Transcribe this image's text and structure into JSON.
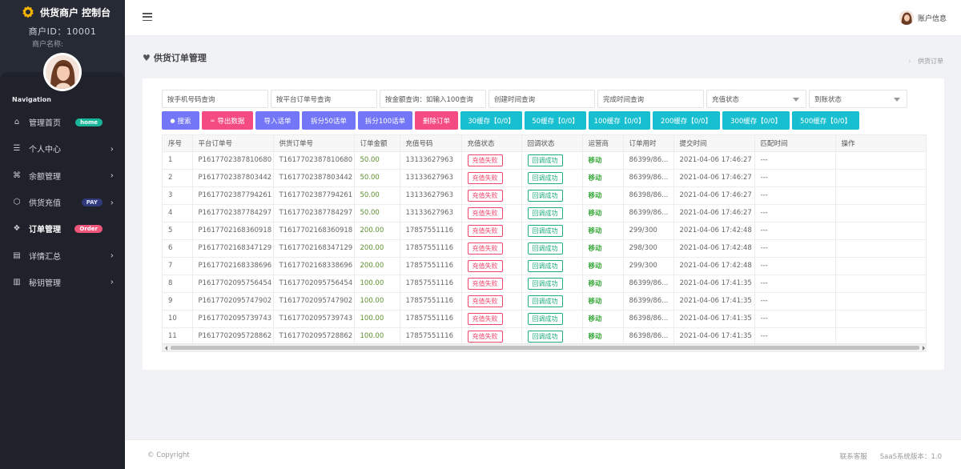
{
  "sidebar": {
    "brand": "供货商户 控制台",
    "merchant_id": "商户ID：10001",
    "merchant_name": "商户名称:",
    "nav_title": "Navigation",
    "items": [
      {
        "label": "管理首页",
        "icon": "home-icon",
        "badge": "home",
        "badge_color": "#18b59a",
        "chevron": false,
        "active": false
      },
      {
        "label": "个人中心",
        "icon": "list-icon",
        "badge": "",
        "chevron": true,
        "active": false
      },
      {
        "label": "余额管理",
        "icon": "command-icon",
        "badge": "",
        "chevron": true,
        "active": false
      },
      {
        "label": "供货充值",
        "icon": "box-icon",
        "badge": "PAY",
        "badge_color": "#303a7a",
        "chevron": true,
        "active": false
      },
      {
        "label": "订单管理",
        "icon": "layers-icon",
        "badge": "Order",
        "badge_color": "#f0557c",
        "chevron": false,
        "active": true
      },
      {
        "label": "详情汇总",
        "icon": "document-icon",
        "badge": "",
        "chevron": true,
        "active": false
      },
      {
        "label": "秘钥管理",
        "icon": "map-icon",
        "badge": "",
        "chevron": true,
        "active": false
      }
    ]
  },
  "header": {
    "user_label": "账户信息"
  },
  "page": {
    "title": "供货订单管理",
    "breadcrumb": "供货订单"
  },
  "filters": [
    {
      "placeholder": "按手机号码查询",
      "type": "input"
    },
    {
      "placeholder": "按平台订单号查询",
      "type": "input"
    },
    {
      "placeholder": "按金额查询：如输入100查询",
      "type": "input"
    },
    {
      "placeholder": "创建时间查询",
      "type": "input"
    },
    {
      "placeholder": "完成时间查询",
      "type": "input"
    },
    {
      "placeholder": "充值状态",
      "type": "select"
    },
    {
      "placeholder": "到账状态",
      "type": "select"
    }
  ],
  "buttons": [
    {
      "label": "搜索",
      "color": "purple",
      "icon": "search-icon"
    },
    {
      "label": "导出数据",
      "color": "pink",
      "icon": "link-icon"
    },
    {
      "label": "导入话单",
      "color": "purple",
      "icon": ""
    },
    {
      "label": "拆分50话单",
      "color": "purple",
      "icon": ""
    },
    {
      "label": "拆分100话单",
      "color": "purple",
      "icon": ""
    },
    {
      "label": "删除订单",
      "color": "pink",
      "icon": ""
    },
    {
      "label": "30缓存【0/0】",
      "color": "cyan",
      "icon": ""
    },
    {
      "label": "50缓存【0/0】",
      "color": "cyan",
      "icon": ""
    },
    {
      "label": "100缓存【0/0】",
      "color": "cyan",
      "icon": ""
    },
    {
      "label": "200缓存【0/0】",
      "color": "cyan",
      "icon": ""
    },
    {
      "label": "300缓存【0/0】",
      "color": "cyan",
      "icon": ""
    },
    {
      "label": "500缓存【0/0】",
      "color": "cyan",
      "icon": ""
    }
  ],
  "table": {
    "columns": [
      "序号",
      "平台订单号",
      "供货订单号",
      "订单金额",
      "充值号码",
      "充值状态",
      "回调状态",
      "运营商",
      "订单用时",
      "提交时间",
      "匹配时间",
      "操作"
    ],
    "rows": [
      [
        "1",
        "P1617702387810680",
        "T1617702387810680",
        "50.00",
        "13133627963",
        "充值失败",
        "回调成功",
        "移动",
        "86399/86...",
        "2021-04-06 17:46:27",
        "---",
        ""
      ],
      [
        "2",
        "P1617702387803442",
        "T1617702387803442",
        "50.00",
        "13133627963",
        "充值失败",
        "回调成功",
        "移动",
        "86399/86...",
        "2021-04-06 17:46:27",
        "---",
        ""
      ],
      [
        "3",
        "P1617702387794261",
        "T1617702387794261",
        "50.00",
        "13133627963",
        "充值失败",
        "回调成功",
        "移动",
        "86398/86...",
        "2021-04-06 17:46:27",
        "---",
        ""
      ],
      [
        "4",
        "P1617702387784297",
        "T1617702387784297",
        "50.00",
        "13133627963",
        "充值失败",
        "回调成功",
        "移动",
        "86399/86...",
        "2021-04-06 17:46:27",
        "---",
        ""
      ],
      [
        "5",
        "P1617702168360918",
        "T1617702168360918",
        "200.00",
        "17857551116",
        "充值失败",
        "回调成功",
        "移动",
        "299/300",
        "2021-04-06 17:42:48",
        "---",
        ""
      ],
      [
        "6",
        "P1617702168347129",
        "T1617702168347129",
        "200.00",
        "17857551116",
        "充值失败",
        "回调成功",
        "移动",
        "298/300",
        "2021-04-06 17:42:48",
        "---",
        ""
      ],
      [
        "7",
        "P1617702168338696",
        "T1617702168338696",
        "200.00",
        "17857551116",
        "充值失败",
        "回调成功",
        "移动",
        "299/300",
        "2021-04-06 17:42:48",
        "---",
        ""
      ],
      [
        "8",
        "P1617702095756454",
        "T1617702095756454",
        "100.00",
        "17857551116",
        "充值失败",
        "回调成功",
        "移动",
        "86399/86...",
        "2021-04-06 17:41:35",
        "---",
        ""
      ],
      [
        "9",
        "P1617702095747902",
        "T1617702095747902",
        "100.00",
        "17857551116",
        "充值失败",
        "回调成功",
        "移动",
        "86399/86...",
        "2021-04-06 17:41:35",
        "---",
        ""
      ],
      [
        "10",
        "P1617702095739743",
        "T1617702095739743",
        "100.00",
        "17857551116",
        "充值失败",
        "回调成功",
        "移动",
        "86398/86...",
        "2021-04-06 17:41:35",
        "---",
        ""
      ],
      [
        "11",
        "P1617702095728862",
        "T1617702095728862",
        "100.00",
        "17857551116",
        "充值失败",
        "回调成功",
        "移动",
        "86398/86...",
        "2021-04-06 17:41:35",
        "---",
        ""
      ]
    ]
  },
  "footer": {
    "copyright": "© Copyright",
    "contact": "联系客服",
    "version": "SaaS系统版本：1.0"
  }
}
